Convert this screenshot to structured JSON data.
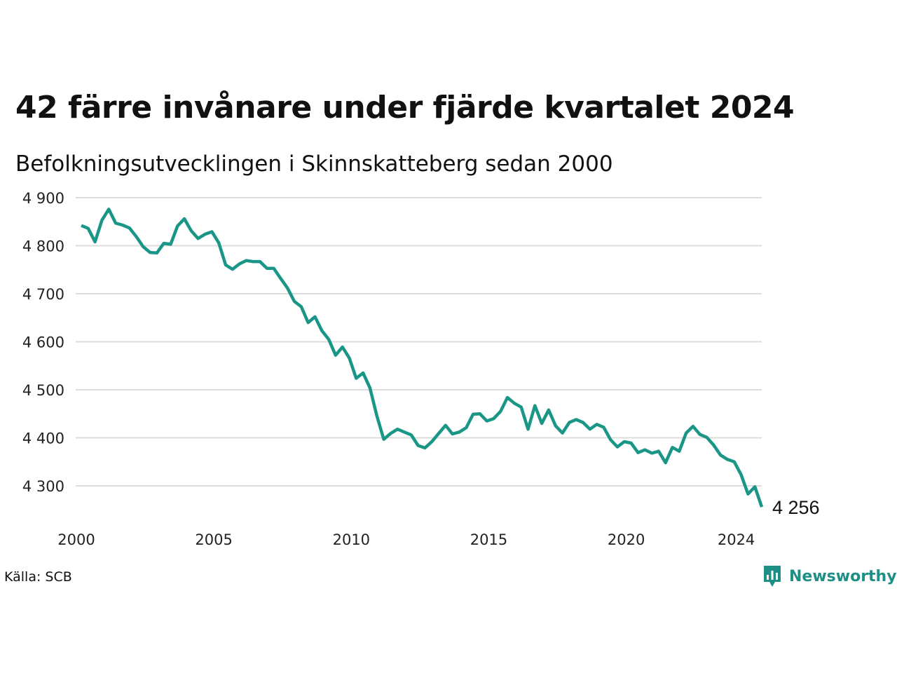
{
  "header": {
    "title": "42 färre invånare under fjärde kvartalet 2024",
    "subtitle": "Befolkningsutvecklingen i Skinnskatteberg sedan 2000"
  },
  "footer": {
    "source": "Källa: SCB",
    "brand": "Newsworthy",
    "brand_icon": "newsworthy-logo-icon"
  },
  "colors": {
    "line": "#1a9686",
    "grid": "#dddddd",
    "brand": "#1e8f86"
  },
  "chart_data": {
    "type": "line",
    "title": "42 färre invånare under fjärde kvartalet 2024",
    "subtitle": "Befolkningsutvecklingen i Skinnskatteberg sedan 2000",
    "xlabel": "",
    "ylabel": "",
    "xlim": [
      2000,
      2025
    ],
    "ylim": [
      4250,
      4900
    ],
    "xticks": [
      2000,
      2005,
      2010,
      2015,
      2020,
      2024
    ],
    "xtick_labels": [
      "2000",
      "2005",
      "2010",
      "2015",
      "2020",
      "2024"
    ],
    "yticks": [
      4300,
      4400,
      4500,
      4600,
      4700,
      4800,
      4900
    ],
    "ytick_labels": [
      "4 300",
      "4 400",
      "4 500",
      "4 600",
      "4 700",
      "4 800",
      "4 900"
    ],
    "grid": "horizontal",
    "legend": "none",
    "end_label": "4 256",
    "series": [
      {
        "x": [
          "2000 K1",
          "2000 K2",
          "2000 K3",
          "2000 K4",
          "2001 K1",
          "2001 K2",
          "2001 K3",
          "2001 K4",
          "2002 K1",
          "2002 K2",
          "2002 K3",
          "2002 K4",
          "2003 K1",
          "2003 K2",
          "2003 K3",
          "2003 K4",
          "2004 K1",
          "2004 K2",
          "2004 K3",
          "2004 K4",
          "2005 K1",
          "2005 K2",
          "2005 K3",
          "2005 K4",
          "2006 K1",
          "2006 K2",
          "2006 K3",
          "2006 K4",
          "2007 K1",
          "2007 K2",
          "2007 K3",
          "2007 K4",
          "2008 K1",
          "2008 K2",
          "2008 K3",
          "2008 K4",
          "2009 K1",
          "2009 K2",
          "2009 K3",
          "2009 K4",
          "2010 K1",
          "2010 K2",
          "2010 K3",
          "2010 K4",
          "2011 K1",
          "2011 K2",
          "2011 K3",
          "2011 K4",
          "2012 K1",
          "2012 K2",
          "2012 K3",
          "2012 K4",
          "2013 K1",
          "2013 K2",
          "2013 K3",
          "2013 K4",
          "2014 K1",
          "2014 K2",
          "2014 K3",
          "2014 K4",
          "2015 K1",
          "2015 K2",
          "2015 K3",
          "2015 K4",
          "2016 K1",
          "2016 K2",
          "2016 K3",
          "2016 K4",
          "2017 K1",
          "2017 K2",
          "2017 K3",
          "2017 K4",
          "2018 K1",
          "2018 K2",
          "2018 K3",
          "2018 K4",
          "2019 K1",
          "2019 K2",
          "2019 K3",
          "2019 K4",
          "2020 K1",
          "2020 K2",
          "2020 K3",
          "2020 K4",
          "2021 K1",
          "2021 K2",
          "2021 K3",
          "2021 K4",
          "2022 K1",
          "2022 K2",
          "2022 K3",
          "2022 K4",
          "2023 K1",
          "2023 K2",
          "2023 K3",
          "2023 K4",
          "2024 K1",
          "2024 K2",
          "2024 K3",
          "2024 K4"
        ],
        "values": [
          4842,
          4836,
          4808,
          4853,
          4876,
          4847,
          4843,
          4837,
          4819,
          4798,
          4786,
          4785,
          4805,
          4803,
          4841,
          4856,
          4831,
          4815,
          4824,
          4829,
          4806,
          4760,
          4751,
          4762,
          4769,
          4767,
          4767,
          4753,
          4753,
          4732,
          4712,
          4684,
          4673,
          4640,
          4652,
          4623,
          4605,
          4572,
          4589,
          4566,
          4524,
          4535,
          4504,
          4446,
          4397,
          4409,
          4418,
          4412,
          4406,
          4384,
          4379,
          4392,
          4409,
          4426,
          4408,
          4412,
          4421,
          4449,
          4450,
          4435,
          4440,
          4455,
          4484,
          4472,
          4464,
          4418,
          4467,
          4430,
          4458,
          4425,
          4410,
          4432,
          4438,
          4432,
          4418,
          4428,
          4422,
          4396,
          4381,
          4392,
          4389,
          4369,
          4375,
          4368,
          4372,
          4348,
          4380,
          4372,
          4410,
          4424,
          4407,
          4401,
          4385,
          4364,
          4355,
          4350,
          4323,
          4283,
          4298,
          4256
        ]
      }
    ]
  }
}
